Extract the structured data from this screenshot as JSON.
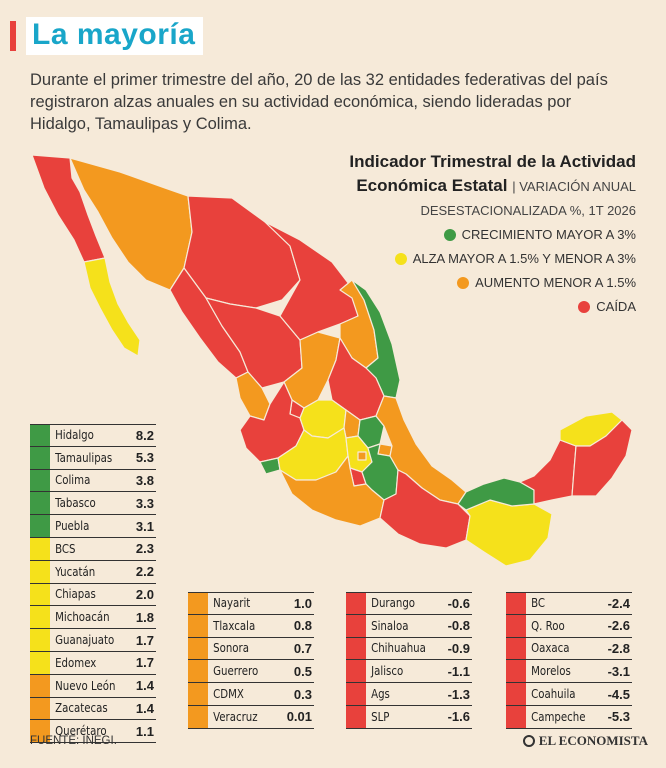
{
  "header": {
    "title": "La mayoría",
    "intro": "Durante el primer trimestre del año, 20 de las 32 entidades federativas del país registraron alzas anuales en su actividad económica, siendo lideradas por Hidalgo, Tamaulipas y Colima."
  },
  "legend": {
    "title_line1": "Indicador Trimestral de la Actividad",
    "title_line2": "Económica Estatal",
    "subtitle_part1": "| VARIACIÓN ANUAL",
    "subtitle_part2": "DESESTACIONALIZADA %, 1T 2026",
    "items": [
      {
        "label": "CRECIMIENTO MAYOR A 3%",
        "color": "#3f9a45"
      },
      {
        "label": "ALZA MAYOR A 1.5% Y MENOR A 3%",
        "color": "#f5e11b"
      },
      {
        "label": "AUMENTO MENOR A 1.5%",
        "color": "#f3991f"
      },
      {
        "label": "CAÍDA",
        "color": "#e8413c"
      }
    ]
  },
  "colors": {
    "green": "#3f9a45",
    "yellow": "#f5e11b",
    "orange": "#f3991f",
    "red": "#e8413c",
    "title": "#19a6c9"
  },
  "table1": [
    {
      "name": "Hidalgo",
      "value": "8.2",
      "color": "#3f9a45"
    },
    {
      "name": "Tamaulipas",
      "value": "5.3",
      "color": "#3f9a45"
    },
    {
      "name": "Colima",
      "value": "3.8",
      "color": "#3f9a45"
    },
    {
      "name": "Tabasco",
      "value": "3.3",
      "color": "#3f9a45"
    },
    {
      "name": "Puebla",
      "value": "3.1",
      "color": "#3f9a45"
    },
    {
      "name": "BCS",
      "value": "2.3",
      "color": "#f5e11b"
    },
    {
      "name": "Yucatán",
      "value": "2.2",
      "color": "#f5e11b"
    },
    {
      "name": "Chiapas",
      "value": "2.0",
      "color": "#f5e11b"
    },
    {
      "name": "Michoacán",
      "value": "1.8",
      "color": "#f5e11b"
    },
    {
      "name": "Guanajuato",
      "value": "1.7",
      "color": "#f5e11b"
    },
    {
      "name": "Edomex",
      "value": "1.7",
      "color": "#f5e11b"
    },
    {
      "name": "Nuevo León",
      "value": "1.4",
      "color": "#f3991f"
    },
    {
      "name": "Zacatecas",
      "value": "1.4",
      "color": "#f3991f"
    },
    {
      "name": "Querétaro",
      "value": "1.1",
      "color": "#f3991f"
    }
  ],
  "table2": [
    {
      "name": "Nayarit",
      "value": "1.0",
      "color": "#f3991f"
    },
    {
      "name": "Tlaxcala",
      "value": "0.8",
      "color": "#f3991f"
    },
    {
      "name": "Sonora",
      "value": "0.7",
      "color": "#f3991f"
    },
    {
      "name": "Guerrero",
      "value": "0.5",
      "color": "#f3991f"
    },
    {
      "name": "CDMX",
      "value": "0.3",
      "color": "#f3991f"
    },
    {
      "name": "Veracruz",
      "value": "0.01",
      "color": "#f3991f"
    }
  ],
  "table3": [
    {
      "name": "Durango",
      "value": "-0.6",
      "color": "#e8413c"
    },
    {
      "name": "Sinaloa",
      "value": "-0.8",
      "color": "#e8413c"
    },
    {
      "name": "Chihuahua",
      "value": "-0.9",
      "color": "#e8413c"
    },
    {
      "name": "Jalisco",
      "value": "-1.1",
      "color": "#e8413c"
    },
    {
      "name": "Ags",
      "value": "-1.3",
      "color": "#e8413c"
    },
    {
      "name": "SLP",
      "value": "-1.6",
      "color": "#e8413c"
    }
  ],
  "table4": [
    {
      "name": "BC",
      "value": "-2.4",
      "color": "#e8413c"
    },
    {
      "name": "Q. Roo",
      "value": "-2.6",
      "color": "#e8413c"
    },
    {
      "name": "Oaxaca",
      "value": "-2.8",
      "color": "#e8413c"
    },
    {
      "name": "Morelos",
      "value": "-3.1",
      "color": "#e8413c"
    },
    {
      "name": "Coahuila",
      "value": "-4.5",
      "color": "#e8413c"
    },
    {
      "name": "Campeche",
      "value": "-5.3",
      "color": "#e8413c"
    }
  ],
  "footer": {
    "source": "FUENTE:  INEGI.",
    "brand": "EL ECONOMISTA"
  }
}
